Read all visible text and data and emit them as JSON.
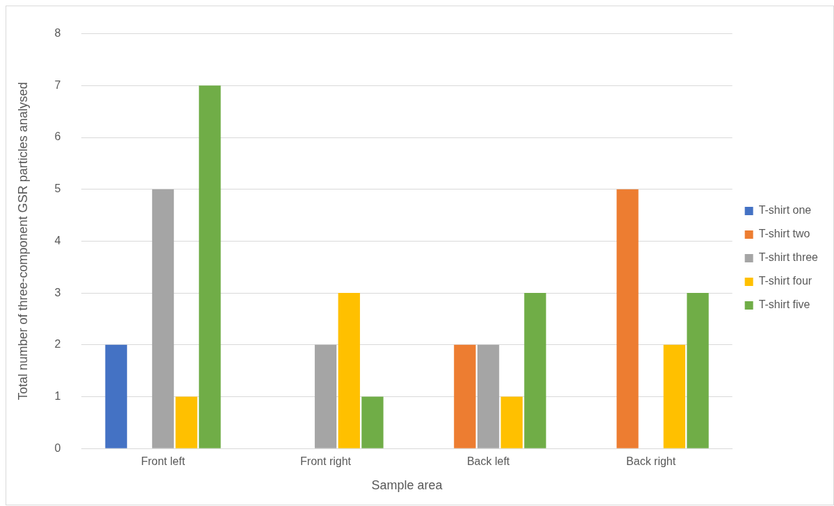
{
  "chart_data": {
    "type": "bar",
    "xlabel": "Sample area",
    "ylabel": "Total number of three-component GSR particles analysed",
    "categories": [
      "Front left",
      "Front right",
      "Back left",
      "Back right"
    ],
    "series": [
      {
        "name": "T-shirt one",
        "color": "#4472c4",
        "values": [
          2,
          0,
          0,
          0
        ]
      },
      {
        "name": "T-shirt two",
        "color": "#ed7d31",
        "values": [
          0,
          0,
          2,
          5
        ]
      },
      {
        "name": "T-shirt three",
        "color": "#a5a5a5",
        "values": [
          5,
          2,
          2,
          0
        ]
      },
      {
        "name": "T-shirt four",
        "color": "#ffc000",
        "values": [
          1,
          3,
          1,
          2
        ]
      },
      {
        "name": "T-shirt five",
        "color": "#70ad47",
        "values": [
          7,
          1,
          3,
          3
        ]
      }
    ],
    "ylim": [
      0,
      8
    ],
    "yticks": [
      0,
      1,
      2,
      3,
      4,
      5,
      6,
      7,
      8
    ],
    "grid": "y",
    "legend": "right"
  }
}
